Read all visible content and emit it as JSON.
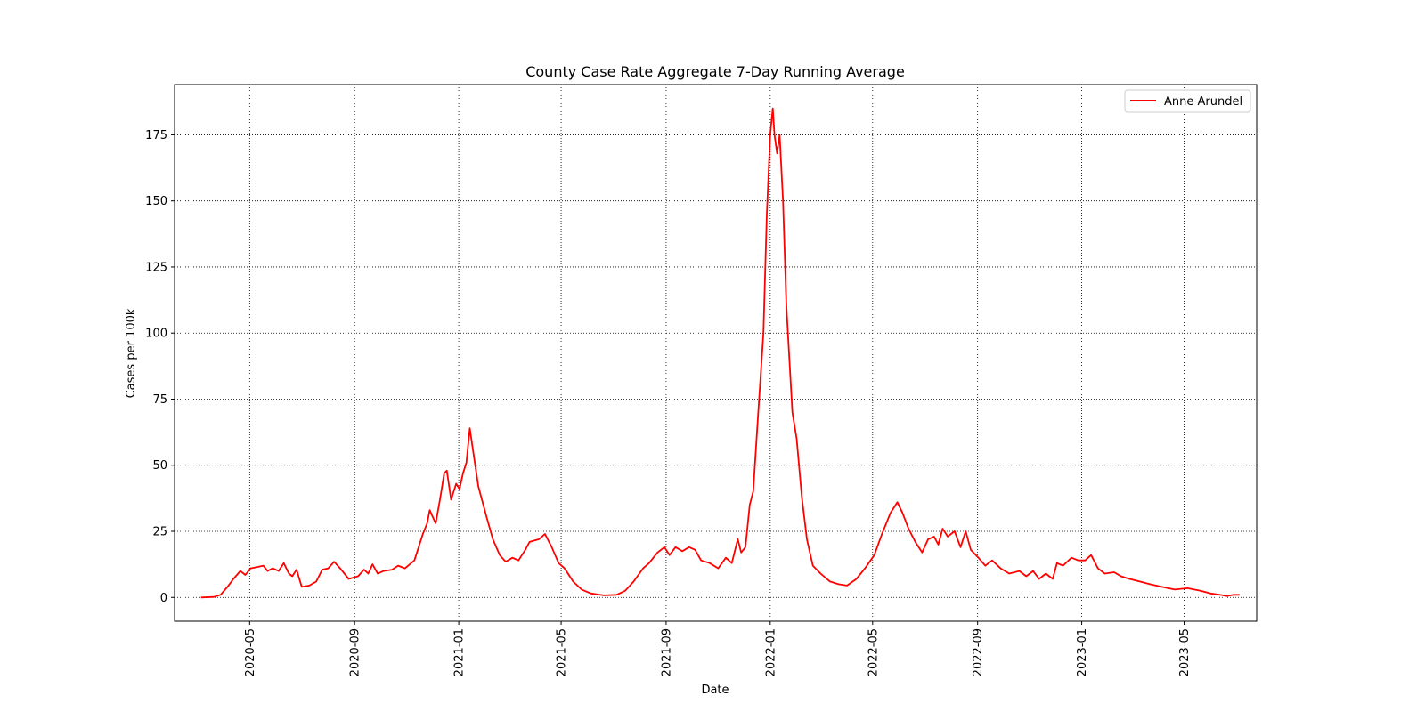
{
  "chart_data": {
    "type": "line",
    "title": "County Case Rate Aggregate 7-Day Running Average",
    "xlabel": "Date",
    "ylabel": "Cases per 100k",
    "xlim": [
      "2020-02-03",
      "2023-07-25"
    ],
    "ylim": [
      -9,
      194
    ],
    "xticks": [
      "2020-05",
      "2020-09",
      "2021-01",
      "2021-05",
      "2021-09",
      "2022-01",
      "2022-05",
      "2022-09",
      "2023-01",
      "2023-05"
    ],
    "yticks": [
      0,
      25,
      50,
      75,
      100,
      125,
      150,
      175
    ],
    "grid": true,
    "legend_position": "top-right",
    "series": [
      {
        "name": "Anne Arundel",
        "color": "#ff0000",
        "points": [
          [
            "2020-03-05",
            0
          ],
          [
            "2020-03-20",
            0.2
          ],
          [
            "2020-03-28",
            1
          ],
          [
            "2020-04-05",
            4
          ],
          [
            "2020-04-12",
            7
          ],
          [
            "2020-04-20",
            10
          ],
          [
            "2020-04-26",
            8.5
          ],
          [
            "2020-05-02",
            11
          ],
          [
            "2020-05-10",
            11.5
          ],
          [
            "2020-05-17",
            12
          ],
          [
            "2020-05-22",
            10
          ],
          [
            "2020-05-28",
            11
          ],
          [
            "2020-06-04",
            10
          ],
          [
            "2020-06-10",
            13
          ],
          [
            "2020-06-16",
            9
          ],
          [
            "2020-06-20",
            8
          ],
          [
            "2020-06-25",
            10.5
          ],
          [
            "2020-07-01",
            4
          ],
          [
            "2020-07-10",
            4.5
          ],
          [
            "2020-07-18",
            6
          ],
          [
            "2020-07-25",
            10.5
          ],
          [
            "2020-08-01",
            11
          ],
          [
            "2020-08-08",
            13.5
          ],
          [
            "2020-08-15",
            11
          ],
          [
            "2020-08-25",
            7
          ],
          [
            "2020-09-05",
            8
          ],
          [
            "2020-09-12",
            10.5
          ],
          [
            "2020-09-17",
            9
          ],
          [
            "2020-09-22",
            12.5
          ],
          [
            "2020-09-28",
            9
          ],
          [
            "2020-10-05",
            10
          ],
          [
            "2020-10-15",
            10.5
          ],
          [
            "2020-10-22",
            12
          ],
          [
            "2020-10-30",
            11
          ],
          [
            "2020-11-10",
            14
          ],
          [
            "2020-11-20",
            24
          ],
          [
            "2020-11-25",
            28
          ],
          [
            "2020-11-28",
            33
          ],
          [
            "2020-12-05",
            28
          ],
          [
            "2020-12-10",
            37
          ],
          [
            "2020-12-15",
            47
          ],
          [
            "2020-12-18",
            48
          ],
          [
            "2020-12-23",
            37
          ],
          [
            "2020-12-29",
            43
          ],
          [
            "2021-01-02",
            41
          ],
          [
            "2021-01-06",
            47
          ],
          [
            "2021-01-10",
            51
          ],
          [
            "2021-01-14",
            64
          ],
          [
            "2021-01-18",
            55
          ],
          [
            "2021-01-24",
            42
          ],
          [
            "2021-02-03",
            30
          ],
          [
            "2021-02-10",
            22
          ],
          [
            "2021-02-18",
            16
          ],
          [
            "2021-02-25",
            13.5
          ],
          [
            "2021-03-05",
            15
          ],
          [
            "2021-03-12",
            14
          ],
          [
            "2021-03-20",
            18
          ],
          [
            "2021-03-25",
            21
          ],
          [
            "2021-04-05",
            22
          ],
          [
            "2021-04-12",
            24
          ],
          [
            "2021-04-20",
            19
          ],
          [
            "2021-04-28",
            13
          ],
          [
            "2021-05-05",
            11
          ],
          [
            "2021-05-15",
            6
          ],
          [
            "2021-05-25",
            3
          ],
          [
            "2021-06-05",
            1.5
          ],
          [
            "2021-06-20",
            0.8
          ],
          [
            "2021-07-05",
            1
          ],
          [
            "2021-07-15",
            2.5
          ],
          [
            "2021-07-25",
            6
          ],
          [
            "2021-08-05",
            11
          ],
          [
            "2021-08-12",
            13
          ],
          [
            "2021-08-22",
            17
          ],
          [
            "2021-08-30",
            19
          ],
          [
            "2021-09-05",
            16
          ],
          [
            "2021-09-12",
            19
          ],
          [
            "2021-09-20",
            17.5
          ],
          [
            "2021-09-28",
            19
          ],
          [
            "2021-10-05",
            18
          ],
          [
            "2021-10-12",
            14
          ],
          [
            "2021-10-22",
            13
          ],
          [
            "2021-11-01",
            11
          ],
          [
            "2021-11-10",
            15
          ],
          [
            "2021-11-17",
            13
          ],
          [
            "2021-11-24",
            22
          ],
          [
            "2021-11-28",
            17
          ],
          [
            "2021-12-03",
            19
          ],
          [
            "2021-12-08",
            35
          ],
          [
            "2021-12-12",
            40
          ],
          [
            "2021-12-18",
            70
          ],
          [
            "2021-12-24",
            100
          ],
          [
            "2021-12-28",
            145
          ],
          [
            "2022-01-01",
            175
          ],
          [
            "2022-01-04",
            185
          ],
          [
            "2022-01-06",
            175
          ],
          [
            "2022-01-09",
            168
          ],
          [
            "2022-01-12",
            175
          ],
          [
            "2022-01-16",
            150
          ],
          [
            "2022-01-20",
            110
          ],
          [
            "2022-01-27",
            70
          ],
          [
            "2022-02-01",
            60
          ],
          [
            "2022-02-07",
            38
          ],
          [
            "2022-02-13",
            22
          ],
          [
            "2022-02-20",
            12
          ],
          [
            "2022-03-01",
            9
          ],
          [
            "2022-03-12",
            6
          ],
          [
            "2022-03-22",
            5
          ],
          [
            "2022-04-01",
            4.5
          ],
          [
            "2022-04-12",
            7
          ],
          [
            "2022-04-22",
            11
          ],
          [
            "2022-05-03",
            16
          ],
          [
            "2022-05-12",
            24
          ],
          [
            "2022-05-22",
            32
          ],
          [
            "2022-05-30",
            36
          ],
          [
            "2022-06-05",
            32
          ],
          [
            "2022-06-12",
            26
          ],
          [
            "2022-06-20",
            21
          ],
          [
            "2022-06-28",
            17
          ],
          [
            "2022-07-05",
            22
          ],
          [
            "2022-07-12",
            23
          ],
          [
            "2022-07-17",
            20
          ],
          [
            "2022-07-22",
            26
          ],
          [
            "2022-07-28",
            23
          ],
          [
            "2022-08-05",
            25
          ],
          [
            "2022-08-12",
            19
          ],
          [
            "2022-08-18",
            25
          ],
          [
            "2022-08-24",
            18
          ],
          [
            "2022-09-02",
            15
          ],
          [
            "2022-09-10",
            12
          ],
          [
            "2022-09-18",
            14
          ],
          [
            "2022-09-28",
            11
          ],
          [
            "2022-10-08",
            9
          ],
          [
            "2022-10-20",
            10
          ],
          [
            "2022-10-28",
            8
          ],
          [
            "2022-11-05",
            10
          ],
          [
            "2022-11-12",
            7
          ],
          [
            "2022-11-20",
            9
          ],
          [
            "2022-11-28",
            7
          ],
          [
            "2022-12-03",
            13
          ],
          [
            "2022-12-10",
            12
          ],
          [
            "2022-12-20",
            15
          ],
          [
            "2022-12-28",
            14
          ],
          [
            "2023-01-05",
            14
          ],
          [
            "2023-01-12",
            16
          ],
          [
            "2023-01-20",
            11
          ],
          [
            "2023-01-28",
            9
          ],
          [
            "2023-02-08",
            9.5
          ],
          [
            "2023-02-16",
            8
          ],
          [
            "2023-02-26",
            7
          ],
          [
            "2023-03-10",
            6
          ],
          [
            "2023-03-22",
            5
          ],
          [
            "2023-04-05",
            4
          ],
          [
            "2023-04-20",
            3
          ],
          [
            "2023-05-05",
            3.5
          ],
          [
            "2023-05-20",
            2.5
          ],
          [
            "2023-06-01",
            1.5
          ],
          [
            "2023-06-12",
            1
          ],
          [
            "2023-06-20",
            0.5
          ],
          [
            "2023-06-28",
            1
          ],
          [
            "2023-07-05",
            1
          ]
        ]
      }
    ]
  }
}
